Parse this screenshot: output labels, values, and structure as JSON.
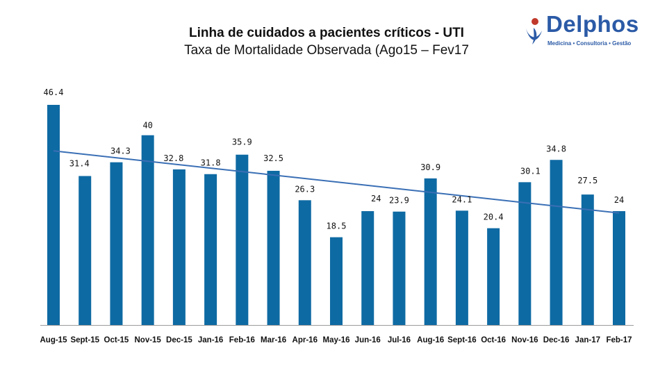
{
  "header": {
    "title": "Linha de cuidados a pacientes críticos - UTI",
    "subtitle": "Taxa de Mortalidade Observada (Ago15 – Fev17"
  },
  "logo": {
    "name": "Delphos",
    "tagline": "Medicina • Consultoria • Gestão",
    "brand_color": "#2b5aa6",
    "accent_color": "#c0392b"
  },
  "chart_data": {
    "type": "bar",
    "title": "Linha de cuidados a pacientes críticos - UTI",
    "subtitle": "Taxa de Mortalidade Observada (Ago15 – Fev17",
    "categories": [
      "Aug-15",
      "Sept-15",
      "Oct-15",
      "Nov-15",
      "Dec-15",
      "Jan-16",
      "Feb-16",
      "Mar-16",
      "Apr-16",
      "May-16",
      "Jun-16",
      "Jul-16",
      "Aug-16",
      "Sept-16",
      "Oct-16",
      "Nov-16",
      "Dec-16",
      "Jan-17",
      "Feb-17"
    ],
    "values": [
      46.4,
      31.4,
      34.3,
      40,
      32.8,
      31.8,
      35.9,
      32.5,
      26.3,
      18.5,
      24,
      23.9,
      30.9,
      24.1,
      20.4,
      30.1,
      34.8,
      27.5,
      24
    ],
    "value_labels": [
      "46.4",
      "31.4",
      "34.3",
      "40",
      "32.8",
      "31.8",
      "35.9",
      "32.5",
      "26.3",
      "18.5",
      "24",
      "23.9",
      "30.9",
      "24.1",
      "20.4",
      "30.1",
      "34.8",
      "27.5",
      "24"
    ],
    "trendline": {
      "type": "linear",
      "start": 36.7,
      "end": 23.6
    },
    "bar_color": "#0e6aa3",
    "trend_color": "#3a6fb5",
    "ylim": [
      0,
      50
    ],
    "xlabel": "",
    "ylabel": "",
    "grid": false,
    "legend": "none"
  }
}
